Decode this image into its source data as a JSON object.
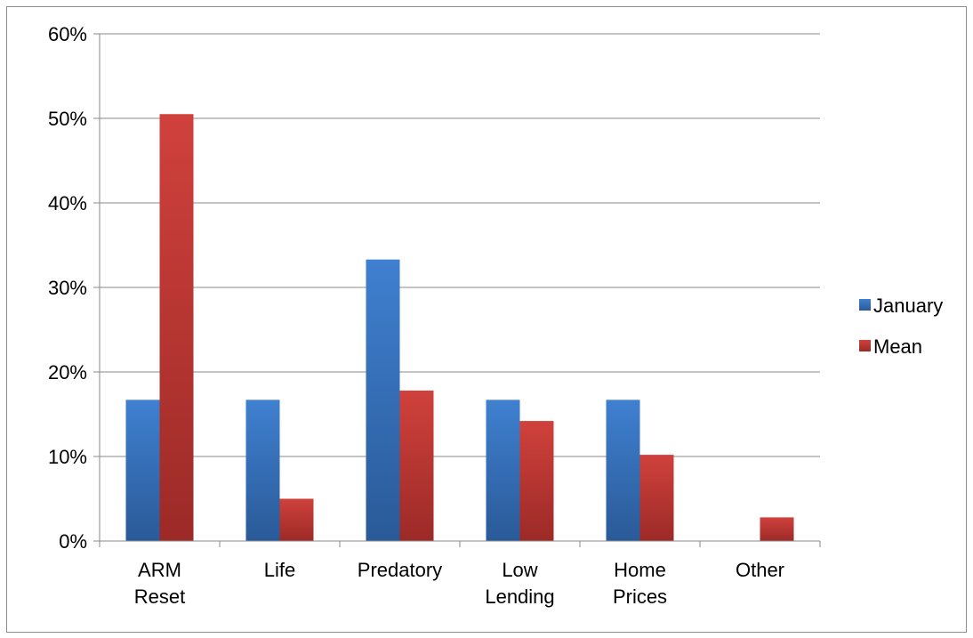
{
  "chart_data": {
    "type": "bar",
    "categories": [
      [
        "ARM",
        "Reset"
      ],
      [
        "Life"
      ],
      [
        "Predatory"
      ],
      [
        "Low",
        "Lending"
      ],
      [
        "Home",
        "Prices"
      ],
      [
        "Other"
      ]
    ],
    "series": [
      {
        "name": "January",
        "values": [
          16.7,
          16.7,
          33.3,
          16.7,
          16.7,
          0
        ],
        "color": "#3a78c4"
      },
      {
        "name": "Mean",
        "values": [
          50.5,
          5.0,
          17.8,
          14.2,
          10.2,
          2.8
        ],
        "color": "#c0392b"
      }
    ],
    "ylim": [
      0,
      60
    ],
    "yticks": [
      0,
      10,
      20,
      30,
      40,
      50,
      60
    ],
    "ytick_labels": [
      "0%",
      "10%",
      "20%",
      "30%",
      "40%",
      "50%",
      "60%"
    ],
    "grid": true,
    "legend_position": "right"
  }
}
